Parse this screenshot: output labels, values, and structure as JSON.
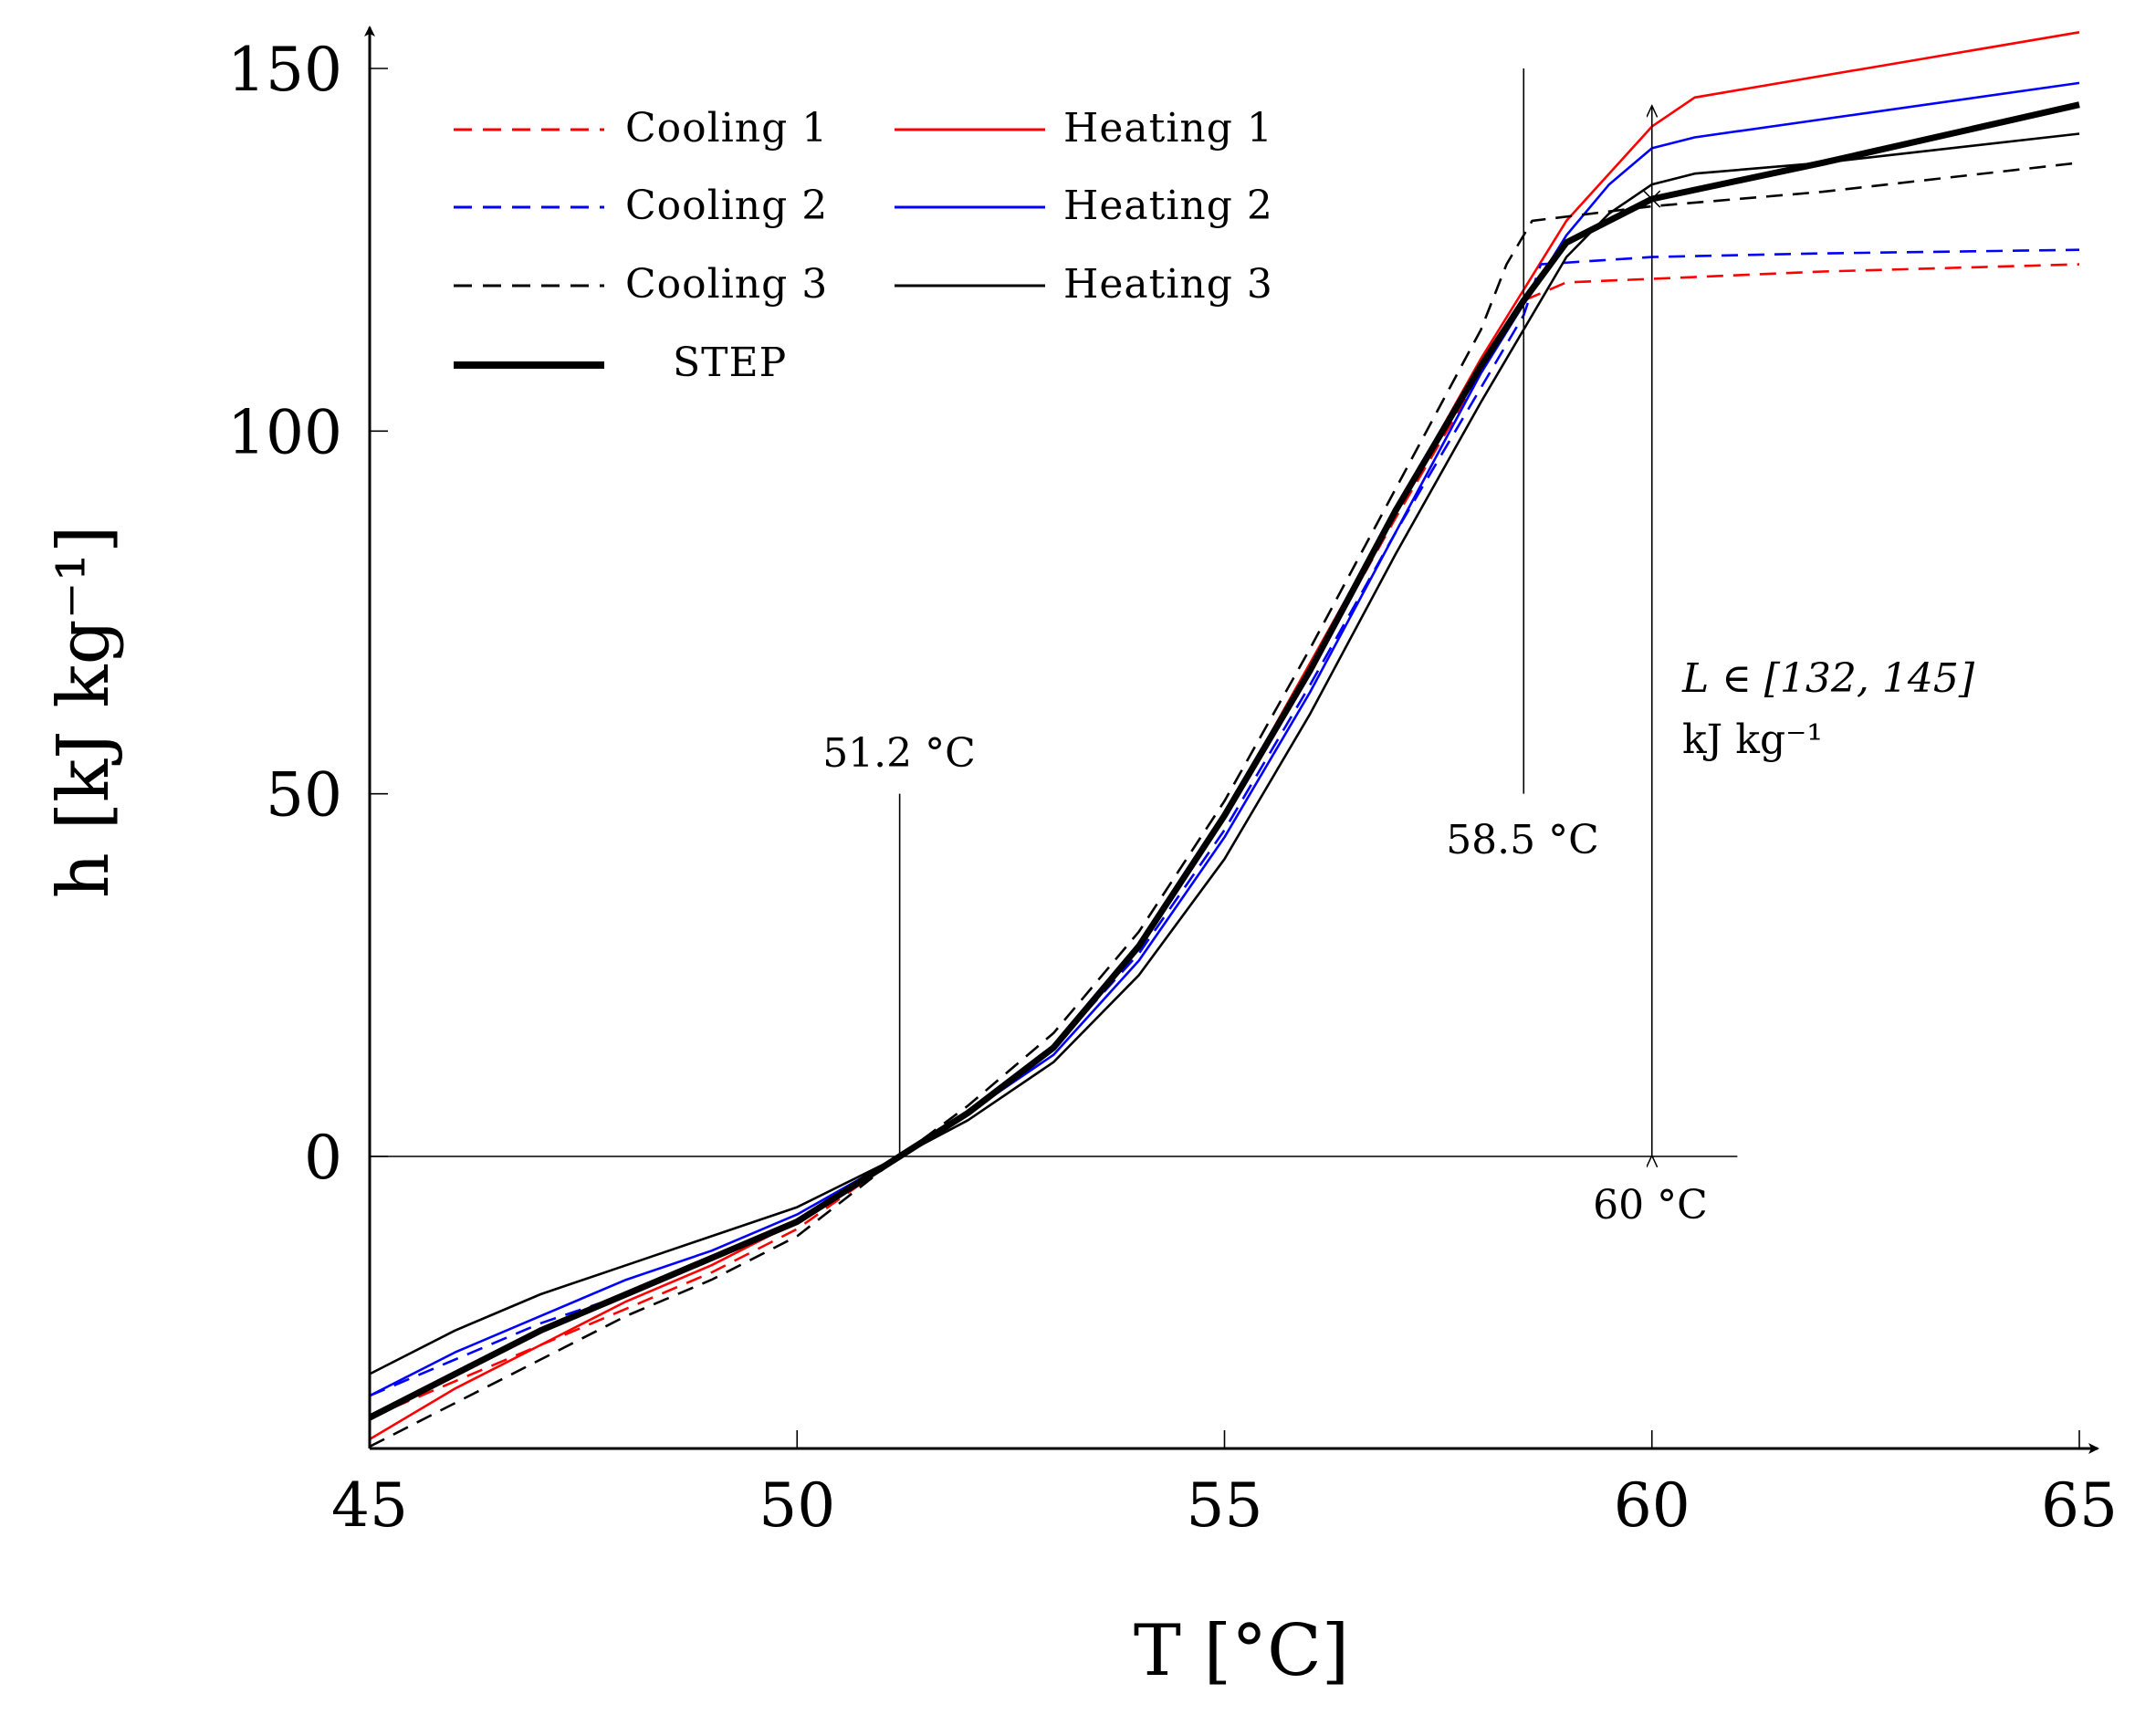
{
  "chart_data": {
    "type": "line",
    "title": "",
    "xlabel": "T [°C]",
    "ylabel": "h [kJ kg⁻¹]",
    "xlim": [
      45,
      65
    ],
    "ylim": [
      -40,
      155
    ],
    "xticks": [
      45,
      50,
      55,
      60,
      65
    ],
    "yticks": [
      0,
      50,
      100,
      150
    ],
    "xtick_labels": [
      "45",
      "50",
      "55",
      "60",
      "65"
    ],
    "ytick_labels": [
      "0",
      "50",
      "100",
      "150"
    ],
    "grid": false,
    "legend_position": "top-left",
    "series": [
      {
        "name": "Cooling 1",
        "color": "#ff0000",
        "dash": "dashed",
        "weight": "normal",
        "x": [
          45,
          46,
          47,
          48,
          49,
          50,
          51.2,
          52,
          53,
          54,
          55,
          56,
          57,
          58,
          58.5,
          59,
          60,
          62,
          65
        ],
        "y": [
          -36,
          -31,
          -26,
          -21,
          -16,
          -10,
          0,
          6,
          15,
          29,
          47,
          67,
          88,
          108,
          118,
          120.5,
          121,
          122,
          123
        ]
      },
      {
        "name": "Heating 1",
        "color": "#ff0000",
        "dash": "solid",
        "weight": "normal",
        "x": [
          45,
          46,
          47,
          48,
          49,
          50,
          51.2,
          52,
          53,
          54,
          55,
          56,
          57,
          58,
          59,
          60,
          60.5,
          61,
          63,
          65
        ],
        "y": [
          -39,
          -32,
          -26,
          -20,
          -15,
          -9,
          0,
          6,
          15,
          29,
          47,
          68,
          89,
          110,
          129,
          142,
          146,
          147,
          151,
          155
        ]
      },
      {
        "name": "Cooling 2",
        "color": "#0000ff",
        "dash": "dashed",
        "weight": "normal",
        "x": [
          45,
          46,
          47,
          48,
          49,
          50,
          51.2,
          52,
          53,
          54,
          55,
          56,
          57,
          58,
          58.5,
          58.7,
          60,
          62,
          65
        ],
        "y": [
          -33,
          -28,
          -23,
          -19,
          -14,
          -9,
          0,
          6,
          15,
          28,
          45,
          65,
          86,
          106,
          116,
          123,
          124,
          124.5,
          125
        ]
      },
      {
        "name": "Heating 2",
        "color": "#0000ff",
        "dash": "solid",
        "weight": "normal",
        "x": [
          45,
          46,
          47,
          48,
          49,
          50,
          51.2,
          52,
          53,
          54,
          55,
          56,
          57,
          58,
          59,
          59.5,
          60,
          60.5,
          62,
          65
        ],
        "y": [
          -33,
          -27,
          -22,
          -17,
          -13,
          -8,
          0,
          6,
          14,
          27,
          44,
          64,
          86,
          108,
          127,
          134,
          139,
          140.5,
          143,
          148
        ]
      },
      {
        "name": "Cooling 3",
        "color": "#000000",
        "dash": "dashed",
        "weight": "normal",
        "x": [
          45,
          46,
          47,
          48,
          49,
          50,
          51.2,
          52,
          53,
          54,
          55,
          56,
          57,
          58,
          58.3,
          58.6,
          60,
          62,
          65
        ],
        "y": [
          -40,
          -34,
          -28,
          -22,
          -17,
          -11,
          0,
          7,
          17,
          31,
          49,
          70,
          92,
          114,
          123,
          129,
          131,
          133,
          137
        ]
      },
      {
        "name": "Heating 3",
        "color": "#000000",
        "dash": "solid",
        "weight": "normal",
        "x": [
          45,
          46,
          47,
          48,
          49,
          50,
          51.2,
          52,
          53,
          54,
          55,
          56,
          57,
          58,
          59,
          59.5,
          60,
          60.5,
          62,
          65
        ],
        "y": [
          -30,
          -24,
          -19,
          -15,
          -11,
          -7,
          0,
          5,
          13,
          25,
          41,
          61,
          83,
          104,
          124,
          130,
          134,
          135.5,
          137,
          141
        ]
      },
      {
        "name": "STEP",
        "color": "#000000",
        "dash": "solid",
        "weight": "bold",
        "x": [
          45,
          46,
          47,
          48,
          49,
          50,
          51.2,
          52,
          53,
          54,
          55,
          56,
          57,
          58,
          58.5,
          59,
          59.5,
          60,
          62,
          65
        ],
        "y": [
          -36,
          -30,
          -24,
          -19,
          -14,
          -9,
          0,
          6,
          15,
          29,
          47,
          67,
          89,
          109,
          118,
          126,
          129,
          132,
          137,
          145
        ]
      }
    ],
    "reference_lines": [
      {
        "name": "zero-line",
        "x": [
          45,
          61
        ],
        "y": [
          0,
          0
        ]
      },
      {
        "name": "line-51-2",
        "x": [
          51.2,
          51.2
        ],
        "y": [
          0,
          50
        ]
      },
      {
        "name": "line-58-5",
        "x": [
          58.5,
          58.5
        ],
        "y": [
          50,
          150
        ]
      }
    ],
    "latent_heat_arrow": {
      "x": 60,
      "y_from": 0,
      "y_to": 145,
      "tick_y": 132
    },
    "annotations": {
      "a51": "51.2 °C",
      "a58": "58.5 °C",
      "a60": "60 °C",
      "latent_line1": "L ∈ [132, 145]",
      "latent_line2": "kJ kg⁻¹"
    }
  }
}
